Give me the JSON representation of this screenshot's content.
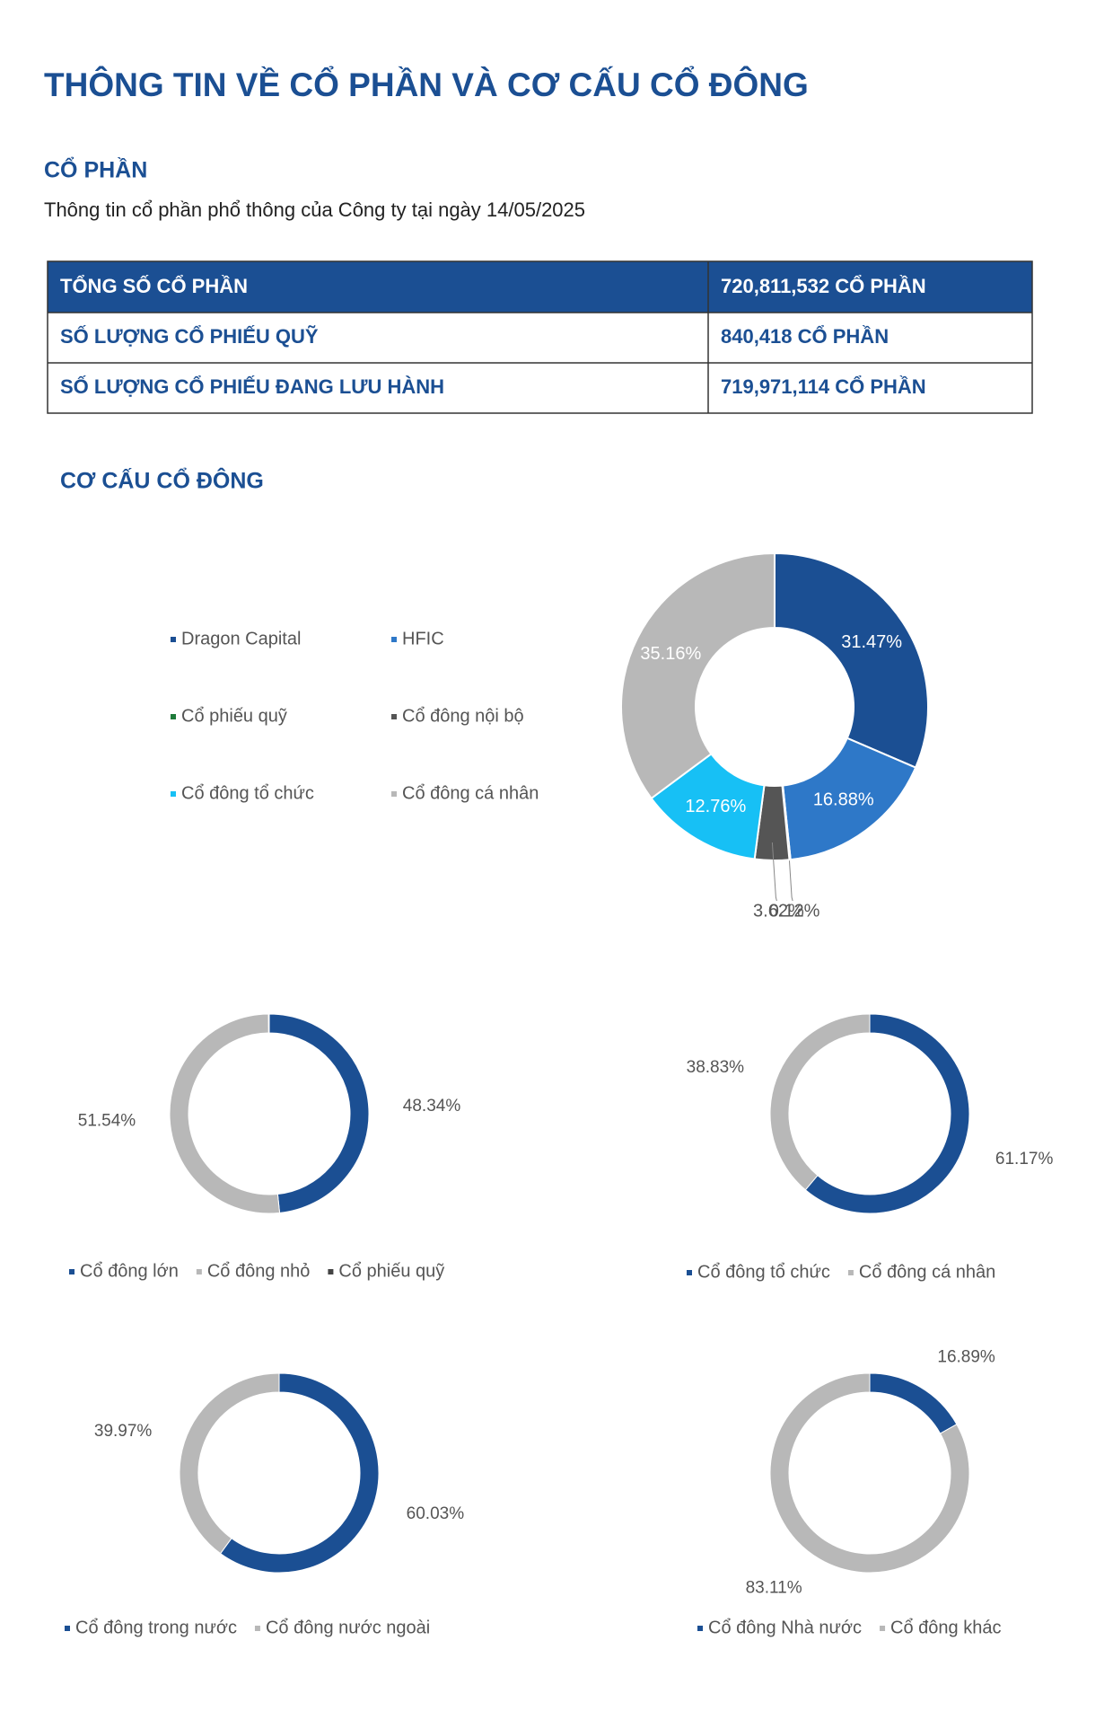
{
  "title": "THÔNG TIN VỀ CỔ PHẦN VÀ CƠ CẤU CỔ ĐÔNG",
  "section_title": "CỔ PHẦN",
  "subtitle": "Thông tin cổ phần phổ thông của Công ty tại ngày 14/05/2025",
  "table": {
    "rows": [
      [
        "TỔNG SỐ CỔ PHẦN",
        "720,811,532 CỔ PHẦN"
      ],
      [
        "SỐ LƯỢNG CỔ PHIẾU QUỸ",
        "840,418 CỔ PHẦN"
      ],
      [
        "SỐ LƯỢNG CỔ PHIẾU ĐANG LƯU HÀNH",
        "719,971,114 CỔ PHẦN"
      ]
    ]
  },
  "structure_title": "CƠ CẤU CỔ ĐÔNG",
  "charts": [
    {
      "type": "donut",
      "categories": [
        "Dragon Capital",
        "HFIC",
        "Cổ phiếu quỹ",
        "Cổ đông nội bộ",
        "Cổ đông tổ chức",
        "Cổ đông cá nhân"
      ],
      "values": [
        31.47,
        16.88,
        0.12,
        3.62,
        12.76,
        35.16
      ],
      "value_labels": [
        "31.47%",
        "16.88%",
        "0.12%",
        "3.62%",
        "12.76%",
        "35.16%"
      ],
      "colors": [
        "#1b4f93",
        "#2e78c8",
        "#1e7b3a",
        "#555555",
        "#17c0f5",
        "#b8b8b8"
      ]
    },
    {
      "type": "donut",
      "categories": [
        "Cổ đông lớn",
        "Cổ đông nhỏ",
        "Cổ phiếu quỹ"
      ],
      "values": [
        48.34,
        51.54,
        0.12
      ],
      "value_labels": [
        "48.34%",
        "51.54%",
        null
      ],
      "colors": [
        "#1b4f93",
        "#b8b8b8",
        "#444444"
      ]
    },
    {
      "type": "donut",
      "categories": [
        "Cổ đông tổ chức",
        "Cổ đông cá nhân"
      ],
      "values": [
        61.17,
        38.83
      ],
      "value_labels": [
        "61.17%",
        "38.83%"
      ],
      "colors": [
        "#1b4f93",
        "#b8b8b8"
      ]
    },
    {
      "type": "donut",
      "categories": [
        "Cổ đông trong nước",
        "Cổ đông nước ngoài"
      ],
      "values": [
        60.03,
        39.97
      ],
      "value_labels": [
        "60.03%",
        "39.97%"
      ],
      "colors": [
        "#1b4f93",
        "#b8b8b8"
      ]
    },
    {
      "type": "donut",
      "categories": [
        "Cổ đông Nhà nước",
        "Cổ đông khác"
      ],
      "values": [
        16.89,
        83.11
      ],
      "value_labels": [
        "16.89%",
        "83.11%"
      ],
      "colors": [
        "#1b4f93",
        "#b8b8b8"
      ]
    }
  ]
}
